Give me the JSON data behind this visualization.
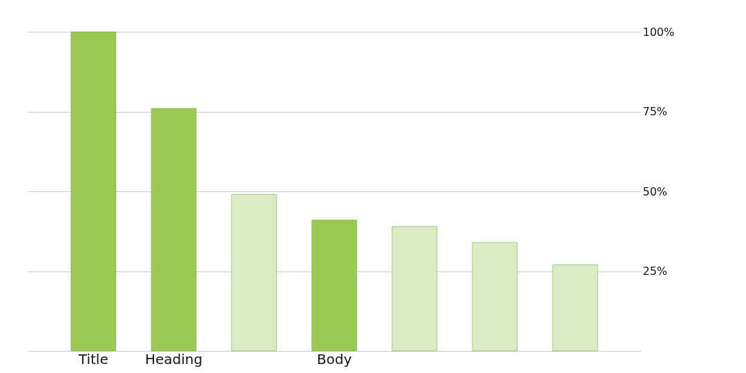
{
  "chart_data": {
    "type": "bar",
    "categories": [
      "Title",
      "Heading",
      null,
      "Body",
      null,
      null,
      null
    ],
    "values": [
      100,
      76,
      49,
      41,
      39,
      34,
      27
    ],
    "colors": [
      "#9bc955",
      "#9bc955",
      "#ddebc5",
      "#9bc955",
      "#ddebc5",
      "#ddebc5",
      "#ddebc5"
    ],
    "ylim": [
      0,
      100
    ],
    "yticks": [
      {
        "value": 25,
        "label": "25%"
      },
      {
        "value": 50,
        "label": "50%"
      },
      {
        "value": 75,
        "label": "75%"
      },
      {
        "value": 100,
        "label": "100%"
      }
    ],
    "grid": "y"
  }
}
